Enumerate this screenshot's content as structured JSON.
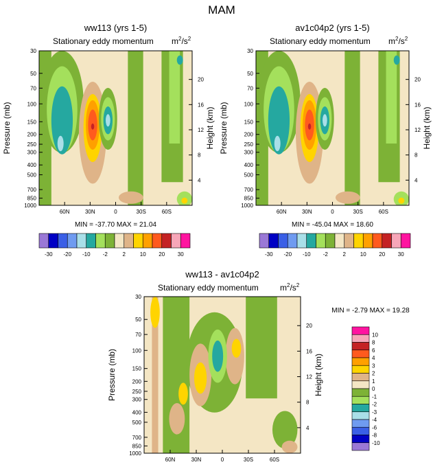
{
  "page_title": "MAM",
  "colors": {
    "c30n": "#9a78d6",
    "c20n": "#0000c4",
    "c15n": "#3a5fe6",
    "c10n": "#6f9bf0",
    "c5n": "#a9dfe8",
    "c2n": "#25a8a0",
    "c1n": "#a4e05c",
    "c0n": "#7db236",
    "c0p": "#f4e6c4",
    "c2p": "#dfb488",
    "c5p": "#ffd400",
    "c10p": "#ffa000",
    "c15p": "#ff5a1e",
    "c20p": "#c42224",
    "c25p": "#f7a6b8",
    "c30p": "#ff14a0"
  },
  "chart_data": [
    {
      "type": "heatmap",
      "panel": "ww113",
      "title": "ww113 (yrs 1-5)",
      "subtitle": "Stationary eddy momentum",
      "units_base": "m",
      "units_exp1": "2",
      "units_sep": "/s",
      "units_exp2": "2",
      "ylabel": "Pressure (mb)",
      "y2label": "Height (km)",
      "pressure_ticks": [
        "30",
        "50",
        "70",
        "100",
        "150",
        "200",
        "250",
        "300",
        "400",
        "500",
        "700",
        "850",
        "1000"
      ],
      "height_ticks": [
        "4",
        "8",
        "12",
        "16",
        "20"
      ],
      "x_ticks": [
        "60N",
        "30N",
        "0",
        "30S",
        "60S"
      ],
      "stats_text": "MIN = -37.70  MAX =  21.04",
      "min": -37.7,
      "max": 21.04,
      "colorbar_labels": [
        "-30",
        "-20",
        "-10",
        "-2",
        "2",
        "10",
        "20",
        "30"
      ]
    },
    {
      "type": "heatmap",
      "panel": "av1c04p2",
      "title": "av1c04p2 (yrs 1-5)",
      "subtitle": "Stationary eddy momentum",
      "units_base": "m",
      "units_exp1": "2",
      "units_sep": "/s",
      "units_exp2": "2",
      "ylabel": "Pressure (mb)",
      "y2label": "Height (km)",
      "pressure_ticks": [
        "30",
        "50",
        "70",
        "100",
        "150",
        "200",
        "250",
        "300",
        "400",
        "500",
        "700",
        "850",
        "1000"
      ],
      "height_ticks": [
        "4",
        "8",
        "12",
        "16",
        "20"
      ],
      "x_ticks": [
        "60N",
        "30N",
        "0",
        "30S",
        "60S"
      ],
      "stats_text": "MIN = -45.04  MAX =  18.60",
      "min": -45.04,
      "max": 18.6,
      "colorbar_labels": [
        "-30",
        "-20",
        "-10",
        "-2",
        "2",
        "10",
        "20",
        "30"
      ]
    },
    {
      "type": "heatmap",
      "panel": "diff",
      "title": "ww113 - av1c04p2",
      "subtitle": "Stationary eddy momentum",
      "units_base": "m",
      "units_exp1": "2",
      "units_sep": "/s",
      "units_exp2": "2",
      "ylabel": "Pressure (mb)",
      "y2label": "Height (km)",
      "pressure_ticks": [
        "30",
        "50",
        "70",
        "100",
        "150",
        "200",
        "250",
        "300",
        "400",
        "500",
        "700",
        "850",
        "1000"
      ],
      "height_ticks": [
        "4",
        "8",
        "12",
        "16",
        "20"
      ],
      "x_ticks": [
        "60N",
        "30N",
        "0",
        "30S",
        "60S"
      ],
      "stats_text": "MIN =  -2.79  MAX =  19.28",
      "min": -2.79,
      "max": 19.28,
      "colorbar_labels": [
        "10",
        "8",
        "6",
        "4",
        "3",
        "2",
        "1",
        "0",
        "-1",
        "-2",
        "-3",
        "-4",
        "-6",
        "-8",
        "-10"
      ]
    }
  ]
}
